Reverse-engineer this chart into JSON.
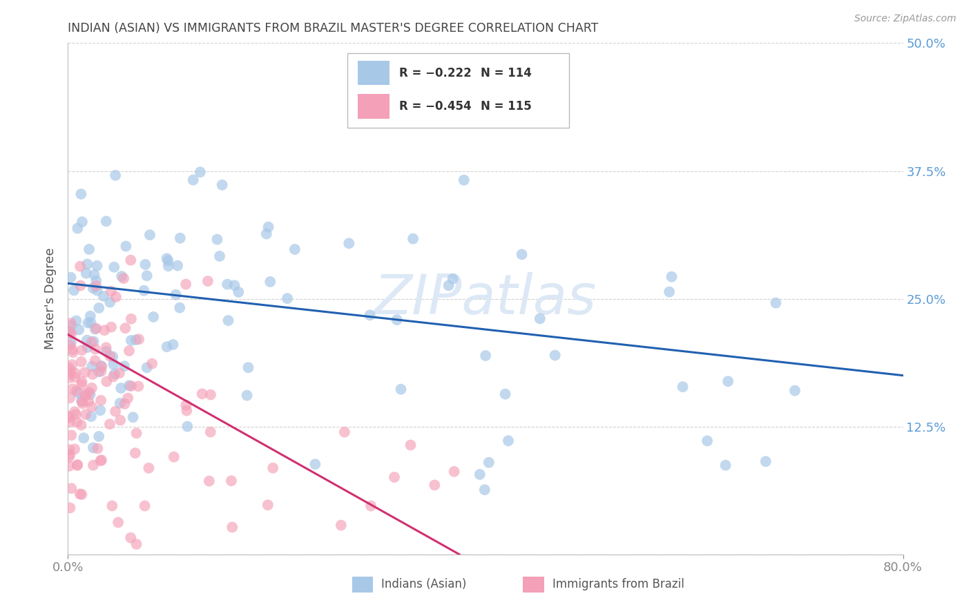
{
  "title": "INDIAN (ASIAN) VS IMMIGRANTS FROM BRAZIL MASTER'S DEGREE CORRELATION CHART",
  "source": "Source: ZipAtlas.com",
  "ylabel": "Master's Degree",
  "yticks": [
    0.0,
    0.125,
    0.25,
    0.375,
    0.5
  ],
  "ytick_labels": [
    "",
    "12.5%",
    "25.0%",
    "37.5%",
    "50.0%"
  ],
  "xlim": [
    0.0,
    0.8
  ],
  "ylim": [
    0.0,
    0.5
  ],
  "legend_r_blue": "R = −0.222",
  "legend_n_blue": "N = 114",
  "legend_r_pink": "R = −0.454",
  "legend_n_pink": "N = 115",
  "blue_color": "#a8c8e8",
  "pink_color": "#f4a0b8",
  "blue_line_color": "#2060b0",
  "pink_line_color": "#d03070",
  "watermark_color": "#dce8f5",
  "background_color": "#ffffff",
  "grid_color": "#cccccc",
  "title_color": "#444444",
  "right_tick_color": "#5b9bd5",
  "blue_R": -0.222,
  "pink_R": -0.454,
  "blue_N": 114,
  "pink_N": 115,
  "blue_line_x0": 0.0,
  "blue_line_x1": 0.8,
  "blue_line_y0": 0.265,
  "blue_line_y1": 0.175,
  "pink_line_x0": 0.0,
  "pink_line_x1": 0.375,
  "pink_line_y0": 0.215,
  "pink_line_y1": 0.0
}
